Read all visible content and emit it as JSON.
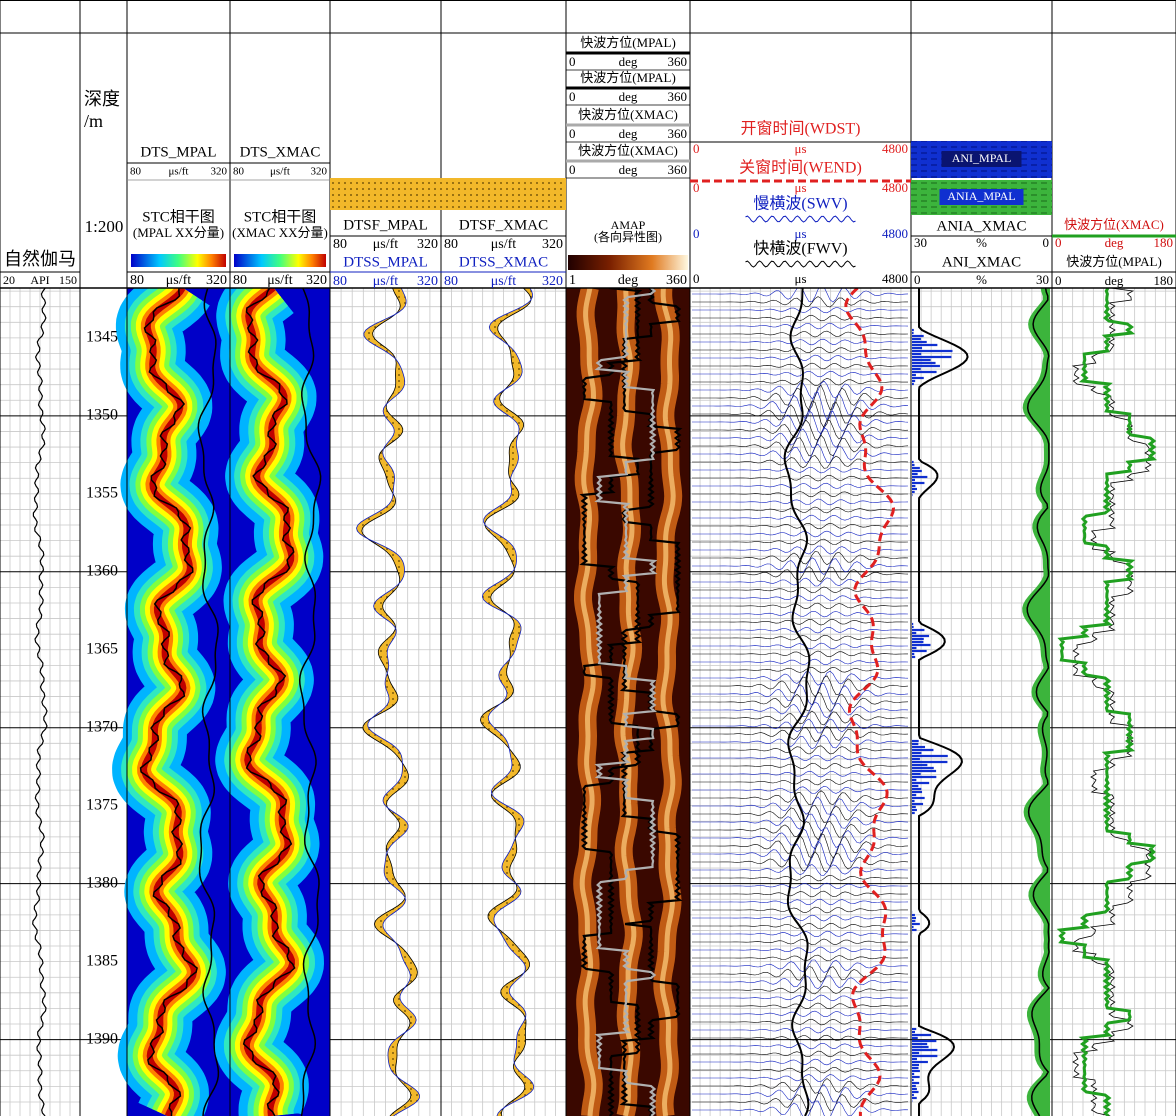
{
  "depth_range": [
    1341.8,
    1394.9
  ],
  "depth_labels": [
    1345,
    1350,
    1355,
    1360,
    1365,
    1370,
    1375,
    1380,
    1385,
    1390
  ],
  "tracks": {
    "gamma": {
      "title": "自然伽马",
      "scale": [
        "20",
        "API",
        "150"
      ]
    },
    "depth": {
      "title": [
        "深度",
        "/m"
      ],
      "ratio": "1:200"
    },
    "dts_mpal": {
      "curve": "DTS_MPAL",
      "curve_scale": [
        "80",
        "μs/ft",
        "320"
      ],
      "title": [
        "STC相干图",
        "(MPAL XX分量)"
      ],
      "color_scale": [
        "80",
        "μs/ft",
        "320"
      ]
    },
    "dts_xmac": {
      "curve": "DTS_XMAC",
      "curve_scale": [
        "80",
        "μs/ft",
        "320"
      ],
      "title": [
        "STC相干图",
        "(XMAC XX分量)"
      ],
      "color_scale": [
        "80",
        "μs/ft",
        "320"
      ]
    },
    "dtsf_mpal": {
      "fast": "DTSF_MPAL",
      "fast_scale": [
        "80",
        "μs/ft",
        "320"
      ],
      "slow": "DTSS_MPAL",
      "slow_scale": [
        "80",
        "μs/ft",
        "320"
      ]
    },
    "dtsf_xmac": {
      "fast": "DTSF_XMAC",
      "fast_scale": [
        "80",
        "μs/ft",
        "320"
      ],
      "slow": "DTSS_XMAC",
      "slow_scale": [
        "80",
        "μs/ft",
        "320"
      ]
    },
    "amap": {
      "rows": [
        {
          "name": "快波方位(MPAL)",
          "scale": [
            "0",
            "deg",
            "360"
          ]
        },
        {
          "name": "快波方位(MPAL)",
          "scale": [
            "0",
            "deg",
            "360"
          ]
        },
        {
          "name": "快波方位(XMAC)",
          "scale": [
            "0",
            "deg",
            "360"
          ]
        },
        {
          "name": "快波方位(XMAC)",
          "scale": [
            "0",
            "deg",
            "360"
          ]
        }
      ],
      "title": [
        "AMAP",
        "(各向异性图)"
      ],
      "color_scale": [
        "1",
        "deg",
        "360"
      ]
    },
    "waves": {
      "rows": [
        {
          "name": "开窗时间(WDST)",
          "scale": [
            "0",
            "μs",
            "4800"
          ]
        },
        {
          "name": "关窗时间(WEND)",
          "scale": [
            "0",
            "μs",
            "4800"
          ]
        },
        {
          "name": "慢横波(SWV)",
          "scale": [
            "0",
            "μs",
            "4800"
          ]
        },
        {
          "name": "快横波(FWV)",
          "scale": [
            "0",
            "μs",
            "4800"
          ]
        }
      ]
    },
    "anisotropy": {
      "ani_mpal": "ANI_MPAL",
      "ania_mpal": "ANIA_MPAL",
      "ania_xmac": "ANIA_XMAC",
      "ania_scale": [
        "30",
        "%",
        "0"
      ],
      "ani_xmac": "ANI_XMAC",
      "ani_scale": [
        "0",
        "%",
        "30"
      ]
    },
    "azimuth": {
      "xmac": "快波方位(XMAC)",
      "xmac_scale": [
        "0",
        "deg",
        "180"
      ],
      "mpal": "快波方位(MPAL)",
      "mpal_scale": [
        "0",
        "deg",
        "180"
      ]
    }
  }
}
